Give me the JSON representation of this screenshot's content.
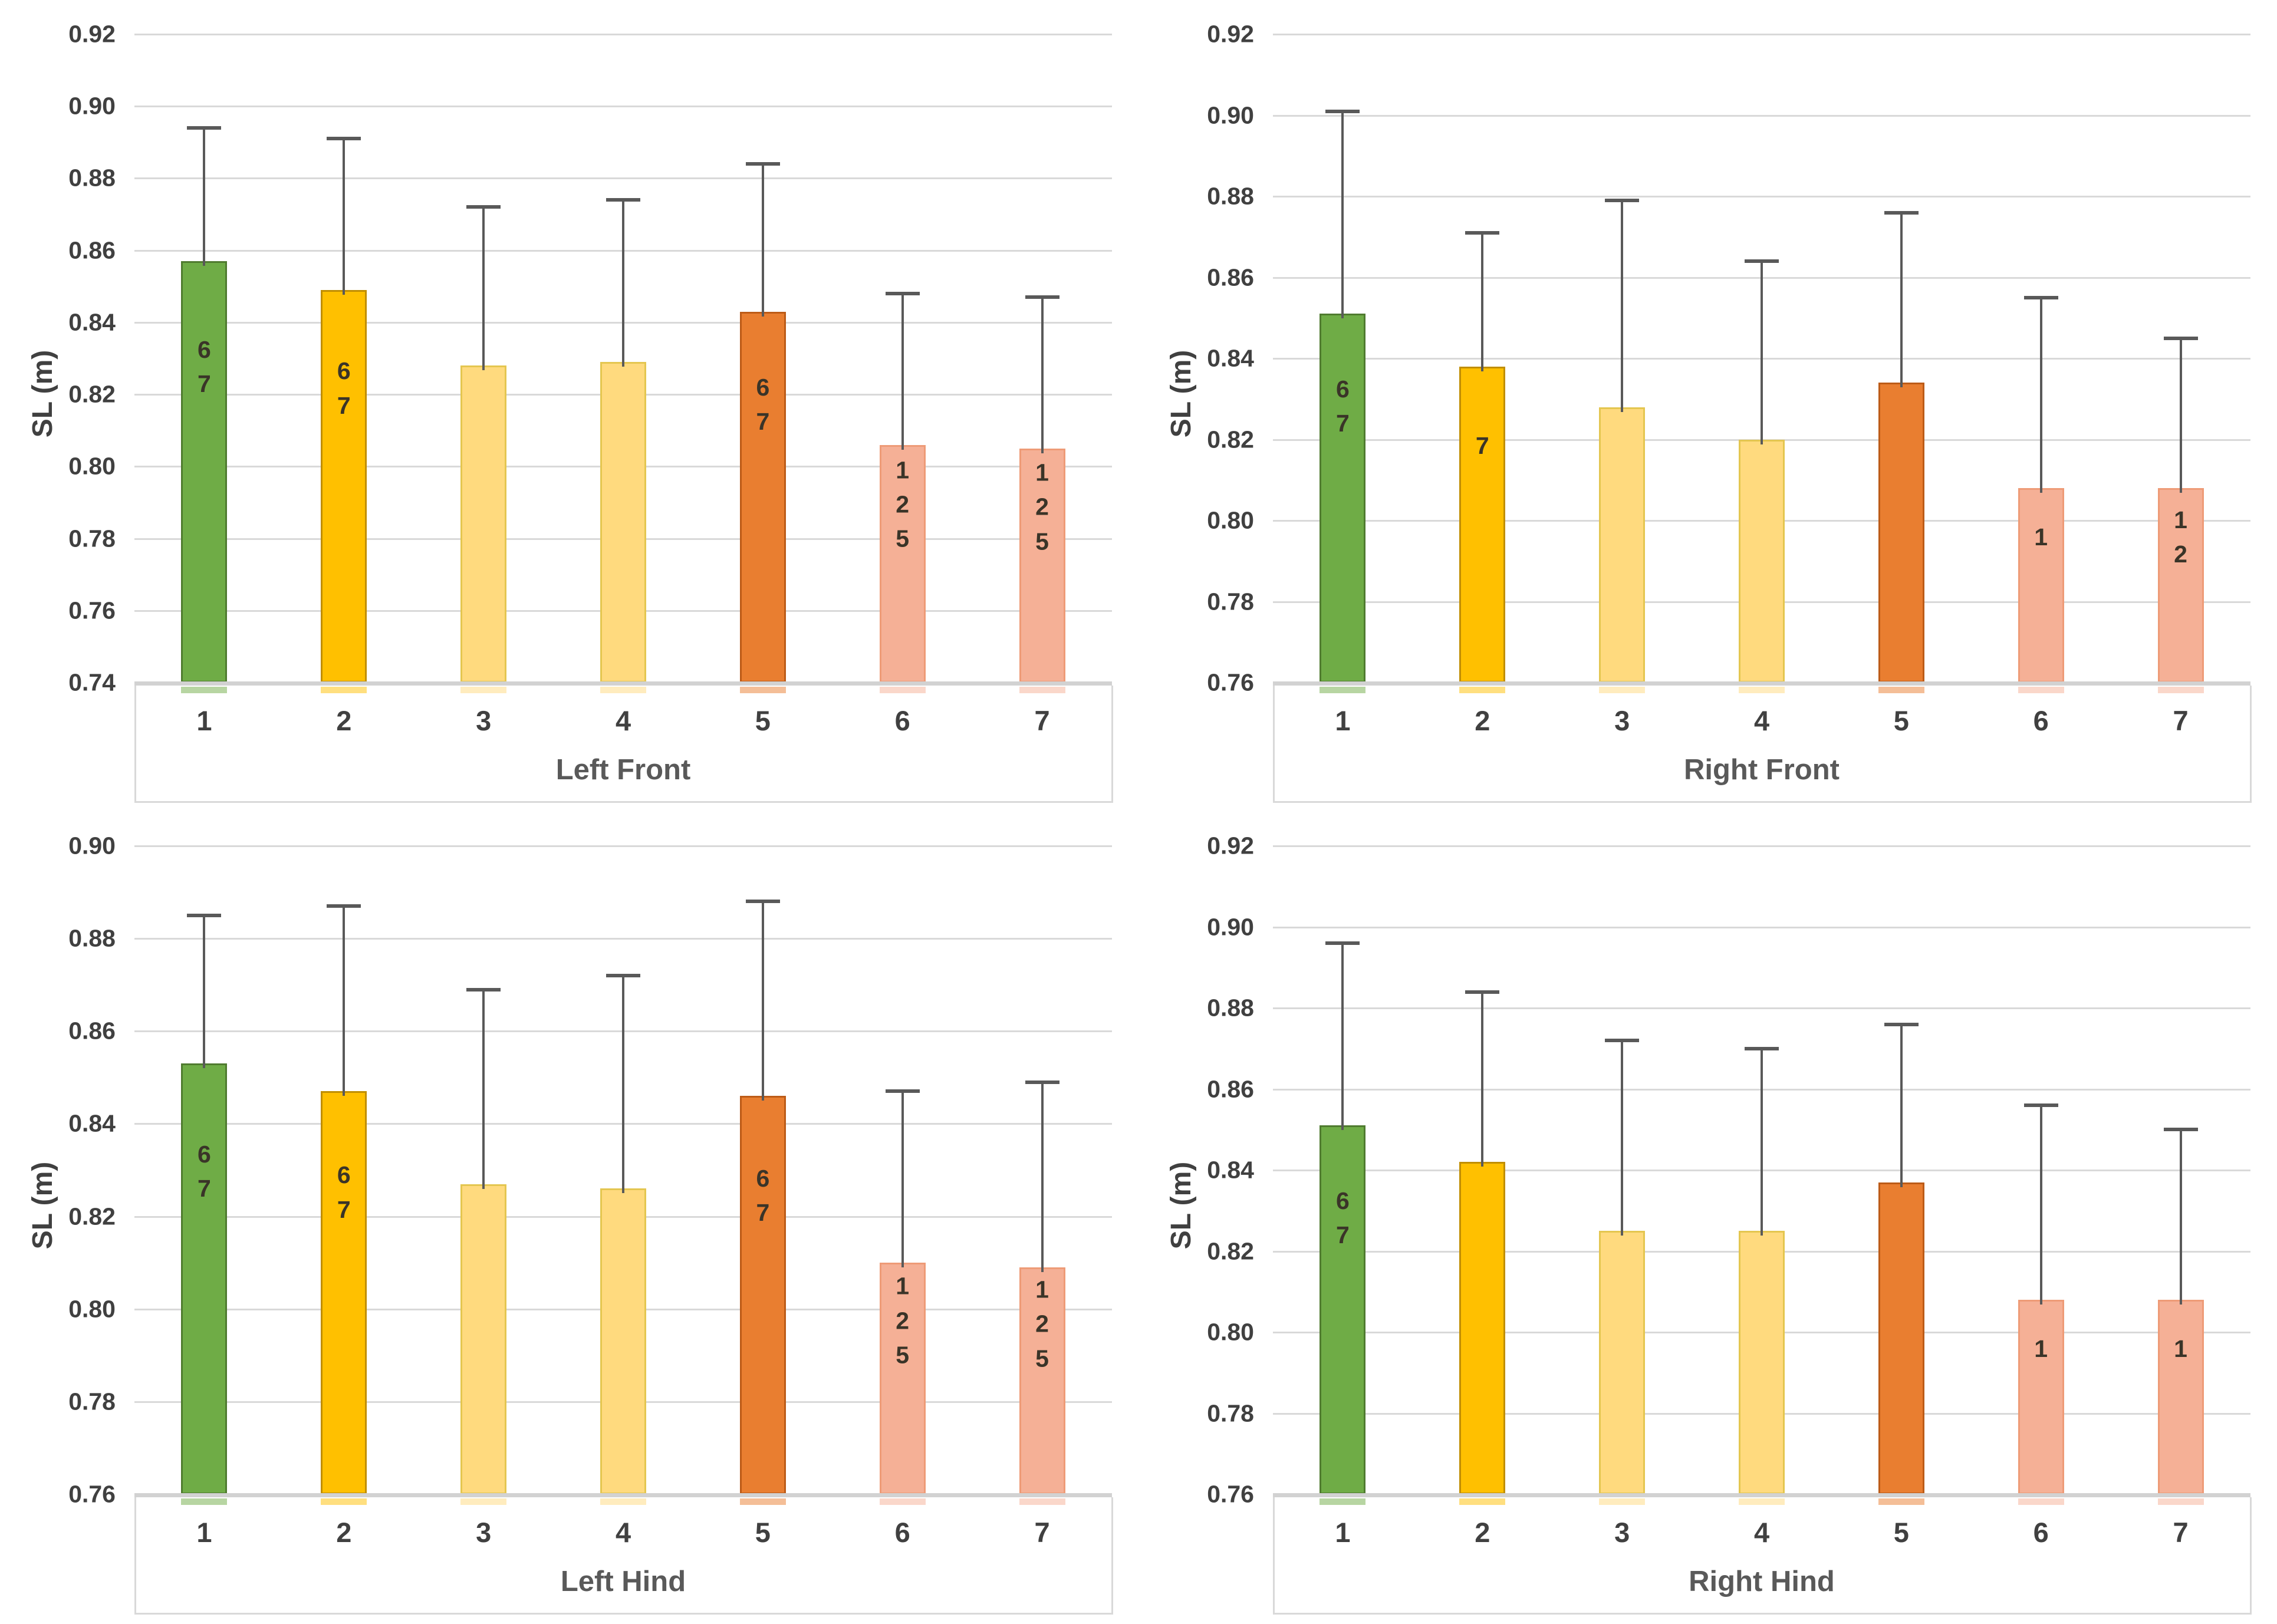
{
  "figure": {
    "ylabel": "SL (m)",
    "categories": [
      "1",
      "2",
      "3",
      "4",
      "5",
      "6",
      "7"
    ],
    "colors": {
      "bar_fills": [
        "#6FAC46",
        "#FFC000",
        "#FFDA7E",
        "#FFDA7E",
        "#E97E30",
        "#F5B096",
        "#F5B096"
      ],
      "bar_borders": [
        "#4F7B2F",
        "#C08E00",
        "#E4C650",
        "#E4C650",
        "#BC5B17",
        "#EE9B77",
        "#EE9B77"
      ],
      "gridline": "#D9D9D9",
      "axis_line": "#D2D2D2",
      "error_bar": "#595959",
      "tick_text": "#404040",
      "title_text": "#595959",
      "bar_label_text": "#3A3428"
    }
  },
  "chart_data": [
    {
      "type": "bar",
      "title": "Left Front",
      "ylabel": "SL (m)",
      "categories": [
        "1",
        "2",
        "3",
        "4",
        "5",
        "6",
        "7"
      ],
      "values": [
        0.857,
        0.849,
        0.828,
        0.829,
        0.843,
        0.806,
        0.805
      ],
      "errors_upper": [
        0.894,
        0.891,
        0.872,
        0.874,
        0.884,
        0.848,
        0.847
      ],
      "bar_labels": [
        [
          "6",
          "7"
        ],
        [
          "6",
          "7"
        ],
        [],
        [],
        [
          "6",
          "7"
        ],
        [
          "1",
          "2",
          "5"
        ],
        [
          "1",
          "2",
          "5"
        ]
      ],
      "ylim": [
        0.74,
        0.92
      ],
      "ystep": 0.02,
      "grid": "on",
      "legend": "none"
    },
    {
      "type": "bar",
      "title": "Right Front",
      "ylabel": "SL (m)",
      "categories": [
        "1",
        "2",
        "3",
        "4",
        "5",
        "6",
        "7"
      ],
      "values": [
        0.851,
        0.838,
        0.828,
        0.82,
        0.834,
        0.808,
        0.808
      ],
      "errors_upper": [
        0.901,
        0.871,
        0.879,
        0.864,
        0.876,
        0.855,
        0.845
      ],
      "bar_labels": [
        [
          "6",
          "7"
        ],
        [
          "7"
        ],
        [],
        [],
        [],
        [
          "1"
        ],
        [
          "1",
          "2"
        ]
      ],
      "ylim": [
        0.76,
        0.92
      ],
      "ystep": 0.02,
      "grid": "on",
      "legend": "none"
    },
    {
      "type": "bar",
      "title": "Left Hind",
      "ylabel": "SL (m)",
      "categories": [
        "1",
        "2",
        "3",
        "4",
        "5",
        "6",
        "7"
      ],
      "values": [
        0.853,
        0.847,
        0.827,
        0.826,
        0.846,
        0.81,
        0.809
      ],
      "errors_upper": [
        0.885,
        0.887,
        0.869,
        0.872,
        0.888,
        0.847,
        0.849
      ],
      "bar_labels": [
        [
          "6",
          "7"
        ],
        [
          "6",
          "7"
        ],
        [],
        [],
        [
          "6",
          "7"
        ],
        [
          "1",
          "2",
          "5"
        ],
        [
          "1",
          "2",
          "5"
        ]
      ],
      "ylim": [
        0.76,
        0.9
      ],
      "ystep": 0.02,
      "grid": "on",
      "legend": "none"
    },
    {
      "type": "bar",
      "title": "Right Hind",
      "ylabel": "SL (m)",
      "categories": [
        "1",
        "2",
        "3",
        "4",
        "5",
        "6",
        "7"
      ],
      "values": [
        0.851,
        0.842,
        0.825,
        0.825,
        0.837,
        0.808,
        0.808
      ],
      "errors_upper": [
        0.896,
        0.884,
        0.872,
        0.87,
        0.876,
        0.856,
        0.85
      ],
      "bar_labels": [
        [
          "6",
          "7"
        ],
        [],
        [],
        [],
        [],
        [
          "1"
        ],
        [
          "1"
        ]
      ],
      "ylim": [
        0.76,
        0.92
      ],
      "ystep": 0.02,
      "grid": "on",
      "legend": "none"
    }
  ]
}
